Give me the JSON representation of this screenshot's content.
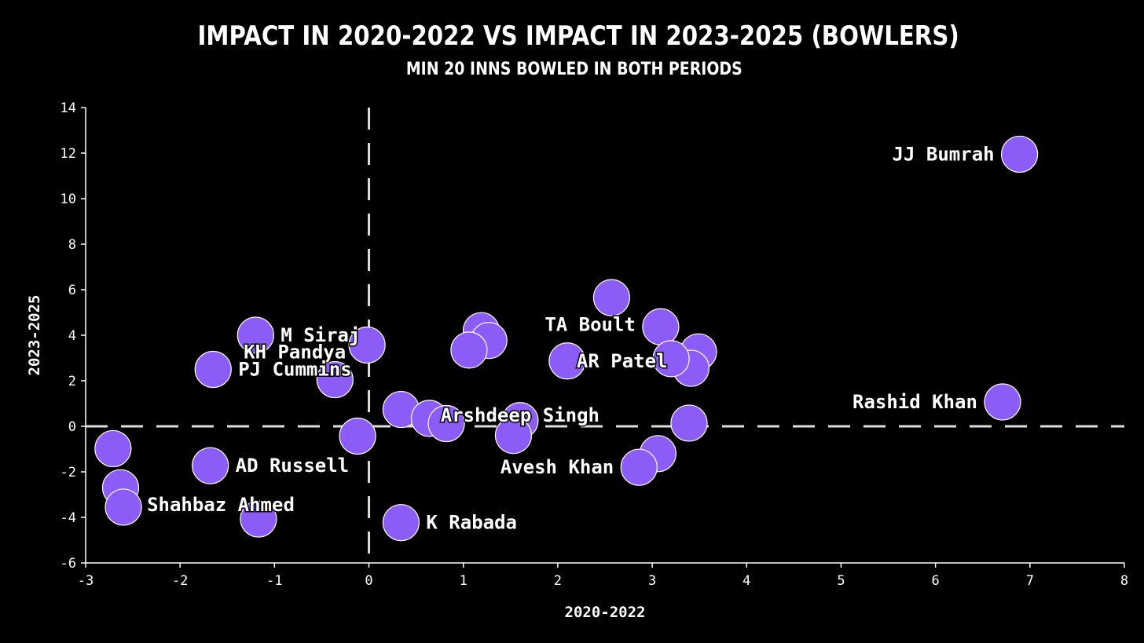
{
  "chart_data": {
    "type": "scatter",
    "title": "Impact in 2020-2022 vs Impact in 2023-2025 (Bowlers)",
    "subtitle": "Min 20 inns bowled in both periods",
    "xlabel": "2020-2022",
    "ylabel": "2023-2025",
    "xlim": [
      -3,
      8
    ],
    "ylim": [
      -6,
      14
    ],
    "xticks": [
      -3,
      -2,
      -1,
      0,
      1,
      2,
      3,
      4,
      5,
      6,
      7,
      8
    ],
    "yticks": [
      -6,
      -4,
      -2,
      0,
      2,
      4,
      6,
      8,
      10,
      12,
      14
    ],
    "reference_lines": {
      "x": 0,
      "y": 0,
      "style": "dashed"
    },
    "marker_color": "#8B5CF6",
    "marker_edge_color": "#ffffff",
    "points": [
      {
        "x": 6.89,
        "y": 11.95,
        "label": "JJ Bumrah"
      },
      {
        "x": 6.71,
        "y": 1.07,
        "label": "Rashid Khan"
      },
      {
        "x": 2.57,
        "y": 5.65,
        "label": ""
      },
      {
        "x": 3.09,
        "y": 4.37,
        "label": "TA Boult"
      },
      {
        "x": 3.49,
        "y": 3.27,
        "label": ""
      },
      {
        "x": 3.41,
        "y": 2.55,
        "label": ""
      },
      {
        "x": 3.2,
        "y": 2.97,
        "label": ""
      },
      {
        "x": 2.1,
        "y": 2.87,
        "label": "AR Patel"
      },
      {
        "x": 1.19,
        "y": 4.2,
        "label": ""
      },
      {
        "x": 1.27,
        "y": 3.77,
        "label": "KH Pandya"
      },
      {
        "x": 1.06,
        "y": 3.35,
        "label": ""
      },
      {
        "x": -0.02,
        "y": 3.57,
        "label": ""
      },
      {
        "x": -1.2,
        "y": 4.0,
        "label": "M Siraj"
      },
      {
        "x": -1.65,
        "y": 2.5,
        "label": "PJ Cummins"
      },
      {
        "x": -0.36,
        "y": 2.05,
        "label": ""
      },
      {
        "x": 0.34,
        "y": 0.74,
        "label": ""
      },
      {
        "x": 0.64,
        "y": 0.35,
        "label": ""
      },
      {
        "x": 0.82,
        "y": 0.12,
        "label": ""
      },
      {
        "x": 1.6,
        "y": 0.25,
        "label": "Arshdeep Singh"
      },
      {
        "x": 1.53,
        "y": -0.4,
        "label": ""
      },
      {
        "x": 3.39,
        "y": 0.14,
        "label": ""
      },
      {
        "x": -0.12,
        "y": -0.43,
        "label": ""
      },
      {
        "x": 3.06,
        "y": -1.2,
        "label": ""
      },
      {
        "x": 2.86,
        "y": -1.8,
        "label": "Avesh Khan"
      },
      {
        "x": -2.71,
        "y": -0.98,
        "label": ""
      },
      {
        "x": -1.68,
        "y": -1.73,
        "label": "AD Russell"
      },
      {
        "x": -2.63,
        "y": -2.7,
        "label": ""
      },
      {
        "x": -2.6,
        "y": -3.55,
        "label": "Shahbaz Ahmed"
      },
      {
        "x": -1.17,
        "y": -4.07,
        "label": ""
      },
      {
        "x": 0.34,
        "y": -4.23,
        "label": "K Rabada"
      }
    ]
  }
}
